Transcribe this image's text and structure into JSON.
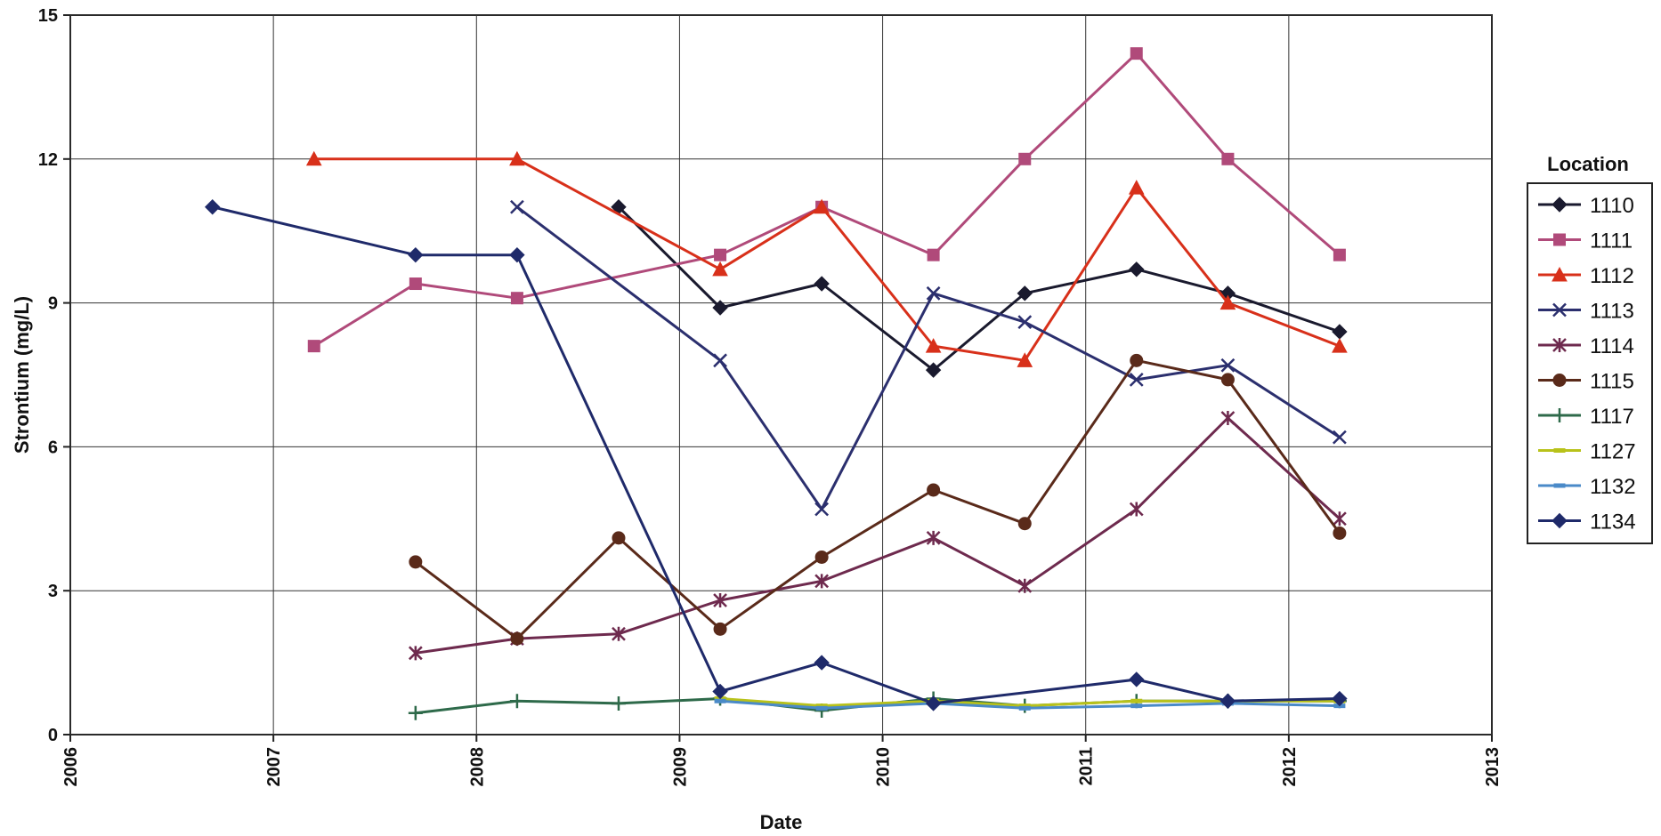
{
  "chart_data": {
    "type": "line",
    "xlabel": "Date",
    "ylabel": "Strontium (mg/L)",
    "xlim": [
      2006,
      2013
    ],
    "ylim": [
      0,
      15
    ],
    "x_ticks": [
      "2006",
      "2007",
      "2008",
      "2009",
      "2010",
      "2011",
      "2012",
      "2013"
    ],
    "y_ticks": [
      "0",
      "3",
      "6",
      "9",
      "12",
      "15"
    ],
    "grid": true,
    "legend_title": "Location",
    "legend_position": "right",
    "series": [
      {
        "name": "1110",
        "color": "#1a1a2e",
        "marker": "diamond",
        "x": [
          2008.7,
          2009.2,
          2009.7,
          2010.25,
          2010.7,
          2011.25,
          2011.7,
          2012.25
        ],
        "y": [
          11,
          8.9,
          9.4,
          7.6,
          9.2,
          9.7,
          9.2,
          8.4
        ]
      },
      {
        "name": "1111",
        "color": "#b04a7a",
        "marker": "square",
        "x": [
          2007.2,
          2007.7,
          2008.2,
          2009.2,
          2009.7,
          2010.25,
          2010.7,
          2011.25,
          2011.7,
          2012.25
        ],
        "y": [
          8.1,
          9.4,
          9.1,
          10,
          11,
          10,
          12,
          14.2,
          12,
          10
        ]
      },
      {
        "name": "1112",
        "color": "#d8301a",
        "marker": "triangle",
        "x": [
          2007.2,
          2008.2,
          2009.2,
          2009.7,
          2010.25,
          2010.7,
          2011.25,
          2011.7,
          2012.25
        ],
        "y": [
          12,
          12,
          9.7,
          11,
          8.1,
          7.8,
          11.4,
          9,
          8.1
        ]
      },
      {
        "name": "1113",
        "color": "#2b2f6e",
        "marker": "x",
        "x": [
          2008.2,
          2009.2,
          2009.7,
          2010.25,
          2010.7,
          2011.25,
          2011.7,
          2012.25
        ],
        "y": [
          11,
          7.8,
          4.7,
          9.2,
          8.6,
          7.4,
          7.7,
          6.2
        ]
      },
      {
        "name": "1114",
        "color": "#6e2a4e",
        "marker": "star",
        "x": [
          2007.7,
          2008.2,
          2008.7,
          2009.2,
          2009.7,
          2010.25,
          2010.7,
          2011.25,
          2011.7,
          2012.25
        ],
        "y": [
          1.7,
          2,
          2.1,
          2.8,
          3.2,
          4.1,
          3.1,
          4.7,
          6.6,
          4.5
        ]
      },
      {
        "name": "1115",
        "color": "#5a2a1a",
        "marker": "circle",
        "x": [
          2007.7,
          2008.2,
          2008.7,
          2009.2,
          2009.7,
          2010.25,
          2010.7,
          2011.25,
          2011.7,
          2012.25
        ],
        "y": [
          3.6,
          2,
          4.1,
          2.2,
          3.7,
          5.1,
          4.4,
          7.8,
          7.4,
          4.2
        ]
      },
      {
        "name": "1117",
        "color": "#2e6a4a",
        "marker": "plus",
        "x": [
          2007.7,
          2008.2,
          2008.7,
          2009.2,
          2009.7,
          2010.25,
          2010.7,
          2011.25,
          2011.7,
          2012.25
        ],
        "y": [
          0.45,
          0.7,
          0.65,
          0.75,
          0.5,
          0.75,
          0.6,
          0.7,
          0.7,
          0.7
        ]
      },
      {
        "name": "1127",
        "color": "#b8c21a",
        "marker": "dash",
        "x": [
          2009.2,
          2009.7,
          2010.25,
          2010.7,
          2011.25,
          2011.7,
          2012.25
        ],
        "y": [
          0.75,
          0.6,
          0.7,
          0.6,
          0.7,
          0.7,
          0.7
        ]
      },
      {
        "name": "1132",
        "color": "#4a8ac8",
        "marker": "dash",
        "x": [
          2009.2,
          2009.7,
          2010.25,
          2010.7,
          2011.25,
          2011.7,
          2012.25
        ],
        "y": [
          0.7,
          0.55,
          0.65,
          0.55,
          0.6,
          0.65,
          0.6
        ]
      },
      {
        "name": "1134",
        "color": "#1f2a6a",
        "marker": "diamond",
        "x": [
          2006.7,
          2007.7,
          2008.2,
          2009.2,
          2009.7,
          2010.25,
          2011.25,
          2011.7,
          2012.25
        ],
        "y": [
          11,
          10,
          10,
          0.9,
          1.5,
          0.65,
          1.15,
          0.7,
          0.75
        ]
      }
    ]
  }
}
